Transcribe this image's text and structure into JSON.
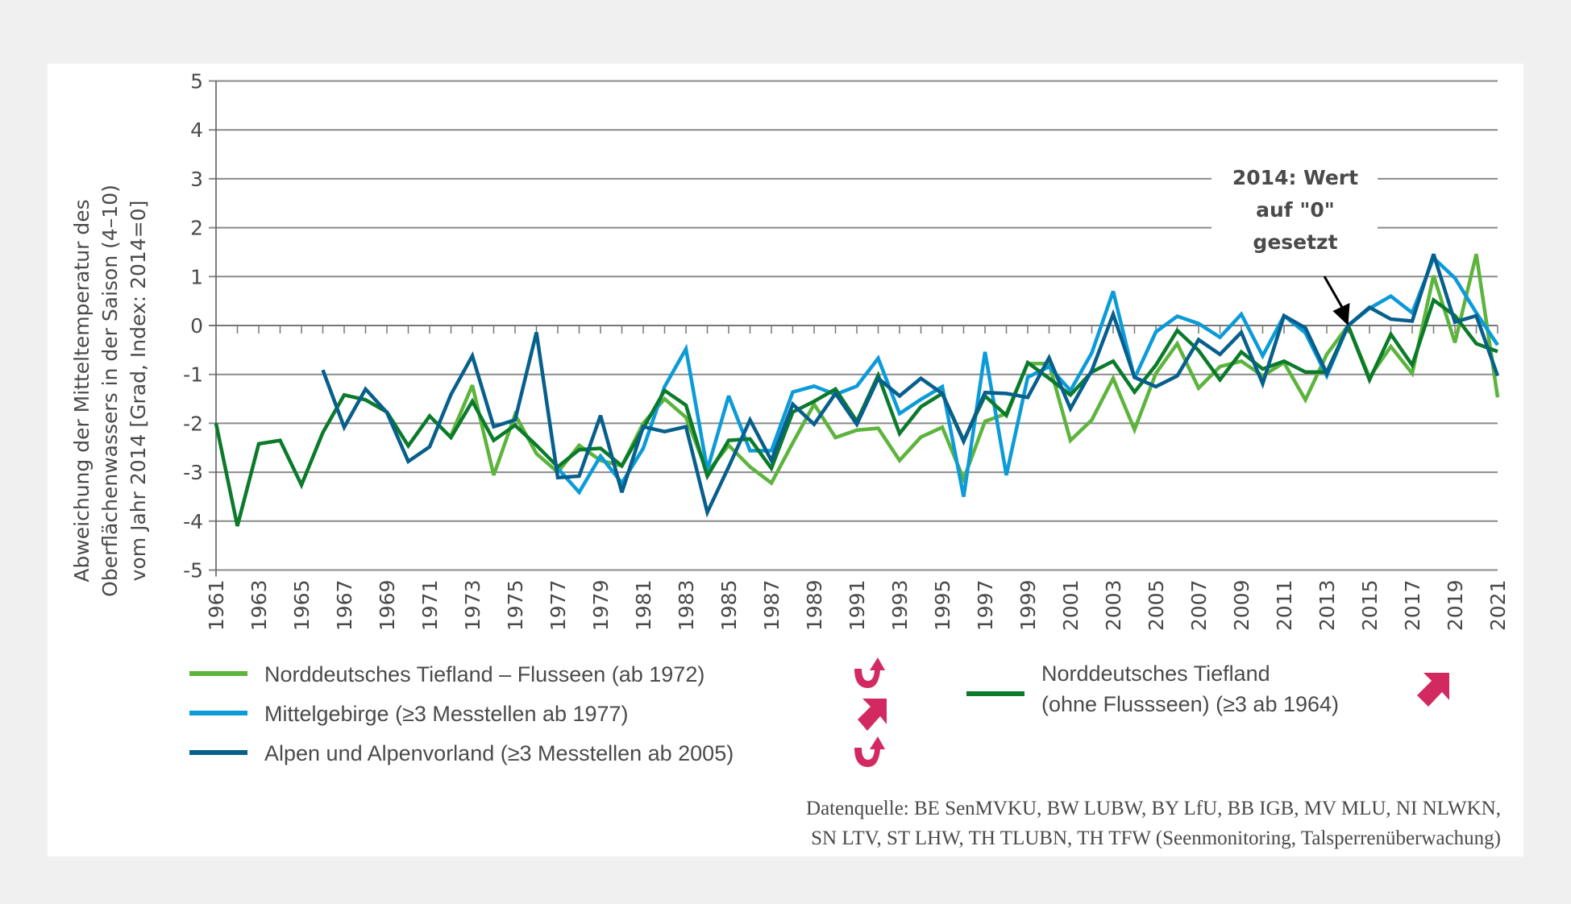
{
  "chart_data": {
    "type": "line",
    "title": "",
    "ylabel": [
      "Abweichung der Mitteltemperatur des",
      "Oberflächenwassers in der Saison (4–10)",
      "vom Jahr 2014 [Grad, Index: 2014=0]"
    ],
    "xlabel": "",
    "ylim": [
      -5,
      5
    ],
    "yticks": [
      "5",
      "4",
      "3",
      "2",
      "1",
      "0",
      "-1",
      "-2",
      "-3",
      "-4",
      "-5"
    ],
    "xlim": [
      1961,
      2021
    ],
    "xtick_labels": [
      "1961",
      "1963",
      "1965",
      "1967",
      "1969",
      "1971",
      "1973",
      "1975",
      "1977",
      "1979",
      "1981",
      "1983",
      "1985",
      "1987",
      "1989",
      "1991",
      "1993",
      "1995",
      "1997",
      "1999",
      "2001",
      "2003",
      "2005",
      "2007",
      "2009",
      "2011",
      "2013",
      "2015",
      "2017",
      "2019",
      "2021"
    ],
    "grid": "horizontal",
    "legend_position": "bottom",
    "annotation": {
      "lines": [
        "2014: Wert",
        "auf \"0\"",
        "gesetzt"
      ],
      "x": 2014,
      "y": 0
    },
    "series": [
      {
        "name": "Norddeutsches Tiefland – Flusseen (ab 1972)",
        "color": "#5cb43c",
        "start_year": 1972,
        "values": [
          -2.25,
          -1.22,
          -3.06,
          -1.82,
          -2.62,
          -3.0,
          -2.45,
          -2.76,
          -2.87,
          -2.0,
          -1.5,
          -1.88,
          -3.0,
          -2.45,
          -2.89,
          -3.22,
          -2.4,
          -1.61,
          -2.29,
          -2.14,
          -2.1,
          -2.76,
          -2.28,
          -2.08,
          -3.14,
          -1.96,
          -1.8,
          -0.78,
          -0.78,
          -2.35,
          -1.93,
          -1.08,
          -2.13,
          -0.98,
          -0.37,
          -1.28,
          -0.84,
          -0.73,
          -1.03,
          -0.76,
          -1.52,
          -0.59,
          0.0,
          -1.06,
          -0.43,
          -0.98,
          1.02,
          -0.35,
          1.46,
          -1.47
        ]
      },
      {
        "name": "Mittelgebirge (≥3 Messtellen ab 1977)",
        "color": "#0b9bd9",
        "start_year": 1977,
        "values": [
          -2.92,
          -3.41,
          -2.67,
          -3.22,
          -2.51,
          -1.25,
          -0.48,
          -2.95,
          -1.44,
          -2.56,
          -2.56,
          -1.36,
          -1.24,
          -1.41,
          -1.24,
          -0.67,
          -1.8,
          -1.51,
          -1.25,
          -3.5,
          -0.54,
          -3.06,
          -1.06,
          -0.84,
          -1.33,
          -0.56,
          0.7,
          -1.08,
          -0.13,
          0.19,
          0.04,
          -0.24,
          0.23,
          -0.62,
          0.2,
          -0.15,
          -1.03,
          0.0,
          0.35,
          0.6,
          0.26,
          1.38,
          0.97,
          0.26,
          -0.4
        ]
      },
      {
        "name": "Alpen und Alpenvorland (≥3 Messtellen ab 2005)",
        "color": "#075f8c",
        "start_year": 1966,
        "values": [
          -0.91,
          -2.08,
          -1.3,
          -1.78,
          -2.78,
          -2.48,
          -1.41,
          -0.62,
          -2.07,
          -1.93,
          -0.14,
          -3.11,
          -3.08,
          -1.84,
          -3.41,
          -2.07,
          -2.17,
          -2.07,
          -3.82,
          -2.89,
          -1.93,
          -2.76,
          -1.61,
          -2.02,
          -1.39,
          -2.02,
          -1.08,
          -1.44,
          -1.08,
          -1.39,
          -2.37,
          -1.37,
          -1.39,
          -1.47,
          -0.66,
          -1.7,
          -0.92,
          0.23,
          -1.06,
          -1.25,
          -1.03,
          -0.29,
          -0.59,
          -0.14,
          -1.19,
          0.2,
          -0.05,
          -0.98,
          0.0,
          0.37,
          0.13,
          0.09,
          1.46,
          0.07,
          0.2,
          -1.03
        ]
      },
      {
        "name": "Norddeutsches Tiefland (ohne Flussseen) (≥3 ab 1964)",
        "color": "#0b7a2b",
        "start_year": 1961,
        "values": [
          -2.0,
          -4.1,
          -2.42,
          -2.35,
          -3.26,
          -2.19,
          -1.42,
          -1.52,
          -1.77,
          -2.46,
          -1.85,
          -2.29,
          -1.55,
          -2.35,
          -2.04,
          -2.45,
          -2.89,
          -2.54,
          -2.51,
          -2.87,
          -2.1,
          -1.33,
          -1.63,
          -3.08,
          -2.35,
          -2.32,
          -2.92,
          -1.77,
          -1.55,
          -1.3,
          -1.96,
          -1.02,
          -2.21,
          -1.66,
          -1.39,
          -2.35,
          -1.44,
          -1.84,
          -0.76,
          -1.08,
          -1.42,
          -0.95,
          -0.73,
          -1.36,
          -0.81,
          -0.1,
          -0.51,
          -1.11,
          -0.54,
          -0.89,
          -0.73,
          -0.95,
          -0.95,
          0.0,
          -1.11,
          -0.18,
          -0.81,
          0.52,
          0.2,
          -0.37,
          -0.53
        ]
      }
    ]
  },
  "legend": {
    "items": [
      {
        "label": "Norddeutsches Tiefland – Flusseen (ab 1972)",
        "color": "#5cb43c",
        "trend_icon": "u-turn-up-arrow-icon"
      },
      {
        "label": "Mittelgebirge (≥3 Messtellen ab 1977)",
        "color": "#0b9bd9",
        "trend_icon": "diagonal-up-arrow-icon"
      },
      {
        "label": "Alpen und Alpenvorland (≥3 Messtellen ab 2005)",
        "color": "#075f8c",
        "trend_icon": "u-turn-up-arrow-icon"
      },
      {
        "label_line1": "Norddeutsches Tiefland",
        "label_line2": "(ohne Flussseen) (≥3 ab 1964)",
        "color": "#0b7a2b",
        "trend_icon": "diagonal-up-arrow-icon"
      }
    ],
    "trend_icon_color": "#d22a60"
  },
  "source": {
    "line1": "Datenquelle: BE SenMVKU, BW LUBW, BY LfU, BB IGB, MV MLU, NI NLWKN,",
    "line2": "SN LTV, ST LHW, TH TLUBN, TH TFW (Seenmonitoring, Talsperrenüberwachung)"
  }
}
